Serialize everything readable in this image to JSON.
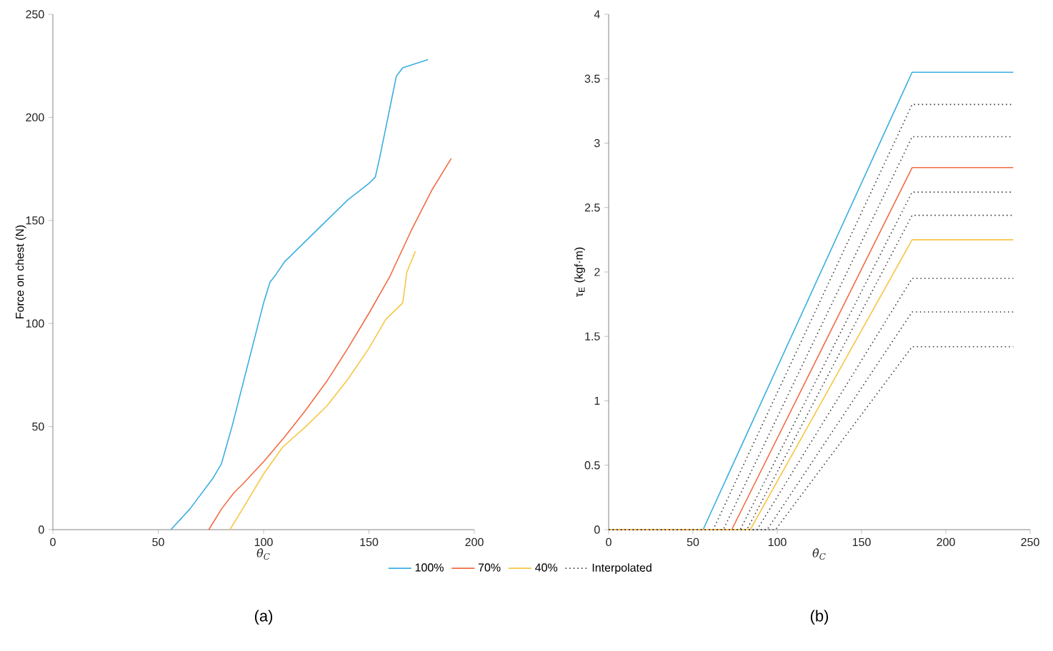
{
  "chart_data": [
    {
      "type": "line",
      "xlabel": "θ̇$_{C}$",
      "ylabel": "Force on chest (N)",
      "xlim": [
        0,
        200
      ],
      "ylim": [
        0,
        250
      ],
      "xticks": [
        0,
        50,
        100,
        150,
        200
      ],
      "yticks": [
        0,
        50,
        100,
        150,
        200,
        250
      ],
      "annotations": [
        "(a)"
      ],
      "series": [
        {
          "color": "#3aaee0",
          "x": [
            56,
            65,
            76,
            80,
            85,
            90,
            95,
            100,
            103,
            106,
            110,
            120,
            130,
            140,
            150,
            153,
            155,
            158,
            161,
            163,
            166,
            178
          ],
          "values": [
            0,
            10,
            25,
            32,
            50,
            70,
            90,
            110,
            120,
            124,
            130,
            140,
            150,
            160,
            168,
            171,
            180,
            195,
            210,
            220,
            224,
            228
          ]
        },
        {
          "color": "#f26b43",
          "x": [
            74,
            80,
            86,
            90,
            100,
            110,
            120,
            130,
            140,
            150,
            160,
            170,
            180,
            189
          ],
          "values": [
            0,
            10,
            18,
            22,
            33,
            45,
            58,
            72,
            88,
            105,
            123,
            145,
            165,
            180
          ]
        },
        {
          "color": "#f7c645",
          "x": [
            84,
            90,
            100,
            109,
            120,
            130,
            140,
            150,
            158,
            166,
            168,
            172
          ],
          "values": [
            0,
            10,
            27,
            40,
            50,
            60,
            73,
            88,
            102,
            110,
            125,
            135
          ]
        }
      ]
    },
    {
      "type": "line",
      "xlabel": "θ̇$_{C}$",
      "ylabel": "τ$_{E}$ (kgf·m)",
      "xlim": [
        0,
        250
      ],
      "ylim": [
        0,
        4
      ],
      "xticks": [
        0,
        50,
        100,
        150,
        200,
        250
      ],
      "yticks": [
        0,
        0.5,
        1,
        1.5,
        2,
        2.5,
        3,
        3.5,
        4
      ],
      "annotations": [
        "(b)"
      ],
      "legend": "bottom",
      "series": [
        {
          "name": "100%",
          "color": "#3aaee0",
          "x": [
            0,
            56,
            180,
            240
          ],
          "values": [
            0,
            0,
            3.55,
            3.55
          ]
        },
        {
          "color": "#404040",
          "line_style": "dotted",
          "x": [
            0,
            62,
            180,
            240
          ],
          "values": [
            0,
            0,
            3.3,
            3.3
          ]
        },
        {
          "color": "#404040",
          "line_style": "dotted",
          "x": [
            0,
            68,
            180,
            240
          ],
          "values": [
            0,
            0,
            3.05,
            3.05
          ]
        },
        {
          "name": "70%",
          "color": "#f26b43",
          "x": [
            0,
            73,
            180,
            240
          ],
          "values": [
            0,
            0,
            2.81,
            2.81
          ]
        },
        {
          "color": "#404040",
          "line_style": "dotted",
          "x": [
            0,
            78,
            180,
            240
          ],
          "values": [
            0,
            0,
            2.62,
            2.62
          ]
        },
        {
          "color": "#404040",
          "line_style": "dotted",
          "x": [
            0,
            82,
            180,
            240
          ],
          "values": [
            0,
            0,
            2.44,
            2.44
          ]
        },
        {
          "name": "40%",
          "color": "#f7c645",
          "x": [
            0,
            84,
            180,
            240
          ],
          "values": [
            0,
            0,
            2.25,
            2.25
          ]
        },
        {
          "name": "Interpolated",
          "color": "#404040",
          "line_style": "dotted",
          "x": [
            0,
            88,
            180,
            240
          ],
          "values": [
            0,
            0,
            1.95,
            1.95
          ]
        },
        {
          "color": "#404040",
          "line_style": "dotted",
          "x": [
            0,
            94,
            180,
            240
          ],
          "values": [
            0,
            0,
            1.69,
            1.69
          ]
        },
        {
          "color": "#404040",
          "line_style": "dotted",
          "x": [
            0,
            99,
            180,
            240
          ],
          "values": [
            0,
            0,
            1.42,
            1.42
          ]
        }
      ]
    }
  ]
}
